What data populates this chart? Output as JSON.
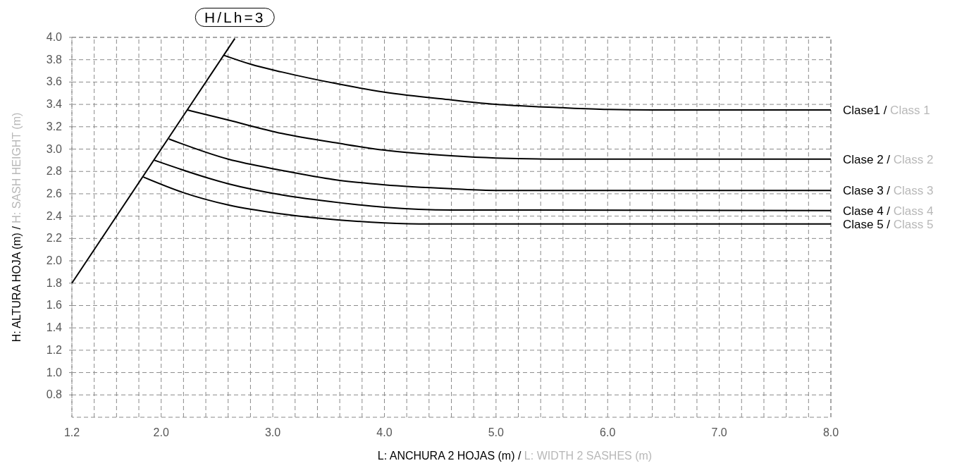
{
  "chart_data": {
    "type": "line",
    "xlabel": "L: ANCHURA 2 HOJAS (m) / L: WIDTH 2 SASHES (m)",
    "ylabel": "H: ALTURA HOJA (m) / H: SASH HEIGHT (m)",
    "xlim": [
      1.2,
      8.0
    ],
    "xticks": [
      1.2,
      {
        "value": 1.4,
        "label": null
      },
      {
        "value": 1.6,
        "label": null
      },
      {
        "value": 1.8,
        "label": null
      },
      {
        "value": 2.0,
        "label": "2.0"
      },
      {
        "value": 2.2,
        "label": null
      },
      {
        "value": 2.4,
        "label": null
      },
      {
        "value": 2.6,
        "label": null
      },
      {
        "value": 2.8,
        "label": null
      },
      {
        "value": 3.0,
        "label": "3.0"
      },
      {
        "value": 3.2,
        "label": null
      },
      {
        "value": 3.4,
        "label": null
      },
      {
        "value": 3.6,
        "label": null
      },
      {
        "value": 3.8,
        "label": null
      },
      {
        "value": 4.0,
        "label": "4.0"
      },
      {
        "value": 4.2,
        "label": null
      },
      {
        "value": 4.4,
        "label": null
      },
      {
        "value": 4.6,
        "label": null
      },
      {
        "value": 4.8,
        "label": null
      },
      {
        "value": 5.0,
        "label": "5.0"
      },
      {
        "value": 5.2,
        "label": null
      },
      {
        "value": 5.4,
        "label": null
      },
      {
        "value": 5.6,
        "label": null
      },
      {
        "value": 5.8,
        "label": null
      },
      {
        "value": 6.0,
        "label": "6.0"
      },
      {
        "value": 6.2,
        "label": null
      },
      {
        "value": 6.4,
        "label": null
      },
      {
        "value": 6.6,
        "label": null
      },
      {
        "value": 6.8,
        "label": null
      },
      {
        "value": 7.0,
        "label": "7.0"
      },
      {
        "value": 7.2,
        "label": null
      },
      {
        "value": 7.4,
        "label": null
      },
      {
        "value": 7.6,
        "label": null
      },
      {
        "value": 7.8,
        "label": null
      },
      {
        "value": 8.0,
        "label": "8.0"
      }
    ],
    "ylim": [
      0.6,
      4.0
    ],
    "yticks": [
      {
        "value": 0.8,
        "label": "0.8"
      },
      {
        "value": 1.0,
        "label": "1.0"
      },
      {
        "value": 1.2,
        "label": "1.2"
      },
      {
        "value": 1.4,
        "label": "1.4"
      },
      {
        "value": 1.6,
        "label": "1.6"
      },
      {
        "value": 1.8,
        "label": "1.8"
      },
      {
        "value": 2.0,
        "label": "2.0"
      },
      {
        "value": 2.2,
        "label": "2.2"
      },
      {
        "value": 2.4,
        "label": "2.4"
      },
      {
        "value": 2.6,
        "label": "2.6"
      },
      {
        "value": 2.8,
        "label": "2.8"
      },
      {
        "value": 3.0,
        "label": "3.0"
      },
      {
        "value": 3.2,
        "label": "3.2"
      },
      {
        "value": 3.4,
        "label": "3.4"
      },
      {
        "value": 3.6,
        "label": "3.6"
      },
      {
        "value": 3.8,
        "label": "3.8"
      },
      {
        "value": 4.0,
        "label": "4.0"
      }
    ],
    "grid": true,
    "series": [
      {
        "name": "H/Lh=3",
        "color": "#000000",
        "x": [
          1.2,
          2.66
        ],
        "values": [
          1.8,
          3.99
        ]
      },
      {
        "name": "Clase1 / Class 1",
        "color": "#000000",
        "x": [
          2.56,
          2.8,
          3.08,
          3.6,
          4.0,
          4.6,
          5.0,
          5.6,
          6.0,
          6.4,
          8.0
        ],
        "values": [
          3.84,
          3.76,
          3.69,
          3.58,
          3.51,
          3.44,
          3.4,
          3.37,
          3.355,
          3.35,
          3.35
        ]
      },
      {
        "name": "Clase 2 / Class 2",
        "color": "#000000",
        "x": [
          2.235,
          2.6,
          3.08,
          3.6,
          4.0,
          4.6,
          5.0,
          5.6,
          8.0
        ],
        "values": [
          3.35,
          3.26,
          3.14,
          3.05,
          2.99,
          2.94,
          2.92,
          2.91,
          2.91
        ]
      },
      {
        "name": "Clase 3 / Class 3",
        "color": "#000000",
        "x": [
          2.07,
          2.6,
          3.08,
          3.6,
          4.0,
          4.6,
          5.0,
          8.0
        ],
        "values": [
          3.09,
          2.91,
          2.81,
          2.72,
          2.68,
          2.645,
          2.63,
          2.63
        ]
      },
      {
        "name": "Clase 4 / Class 4",
        "color": "#000000",
        "x": [
          1.94,
          2.6,
          3.08,
          3.6,
          4.0,
          4.6,
          8.0
        ],
        "values": [
          2.9,
          2.69,
          2.59,
          2.52,
          2.48,
          2.455,
          2.45
        ]
      },
      {
        "name": "Clase 5 / Class 5",
        "color": "#000000",
        "x": [
          1.84,
          2.2,
          2.6,
          3.08,
          3.6,
          4.0,
          4.4,
          8.0
        ],
        "values": [
          2.75,
          2.61,
          2.5,
          2.42,
          2.365,
          2.34,
          2.33,
          2.33
        ]
      }
    ]
  }
}
